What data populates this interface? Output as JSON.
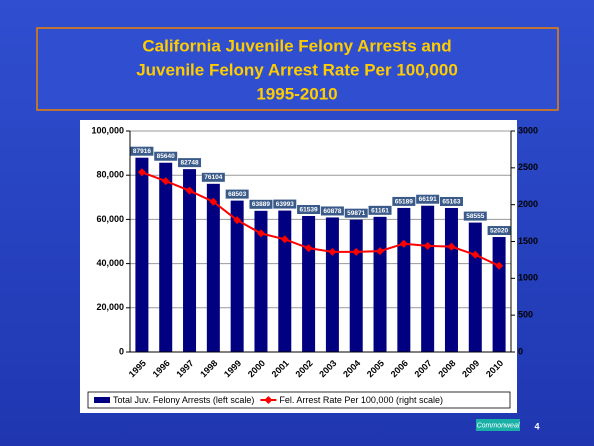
{
  "chart_data": {
    "type": "bar_line",
    "title": [
      "California Juvenile Felony Arrests and",
      "Juvenile Felony Arrest Rate Per 100,000",
      "1995-2010"
    ],
    "categories": [
      "1995",
      "1996",
      "1997",
      "1998",
      "1999",
      "2000",
      "2001",
      "2002",
      "2003",
      "2004",
      "2005",
      "2006",
      "2007",
      "2008",
      "2009",
      "2010"
    ],
    "series": [
      {
        "name": "Total Juv. Felony Arrests (left scale)",
        "type": "bar",
        "color": "#000080",
        "values": [
          87916,
          85640,
          82748,
          76104,
          68503,
          63889,
          63993,
          61539,
          60878,
          59871,
          61161,
          65189,
          66191,
          65163,
          58555,
          52020
        ]
      },
      {
        "name": "Fel. Arrest Rate Per 100,000 (right scale)",
        "type": "line",
        "axis": "y2",
        "color": "#ff0000",
        "values": [
          2440,
          2320,
          2190,
          2040,
          1790,
          1610,
          1530,
          1410,
          1360,
          1360,
          1370,
          1470,
          1440,
          1430,
          1320,
          1170
        ]
      }
    ],
    "ylim": [
      0,
      100000
    ],
    "yticks": [
      0,
      {
        "value": 20000,
        "label": "20,000"
      },
      {
        "value": 40000,
        "label": "40,000"
      },
      {
        "value": 60000,
        "label": "60,000"
      },
      {
        "value": 80000,
        "label": "80,000"
      },
      {
        "value": 100000,
        "label": "100,000"
      }
    ],
    "y2lim": [
      0,
      3000
    ],
    "y2ticks": [
      0,
      500,
      1000,
      1500,
      2000,
      2500,
      3000
    ],
    "grid": true,
    "legend": "bottom"
  },
  "footer": {
    "logo": "Commonweal",
    "page": "4"
  }
}
